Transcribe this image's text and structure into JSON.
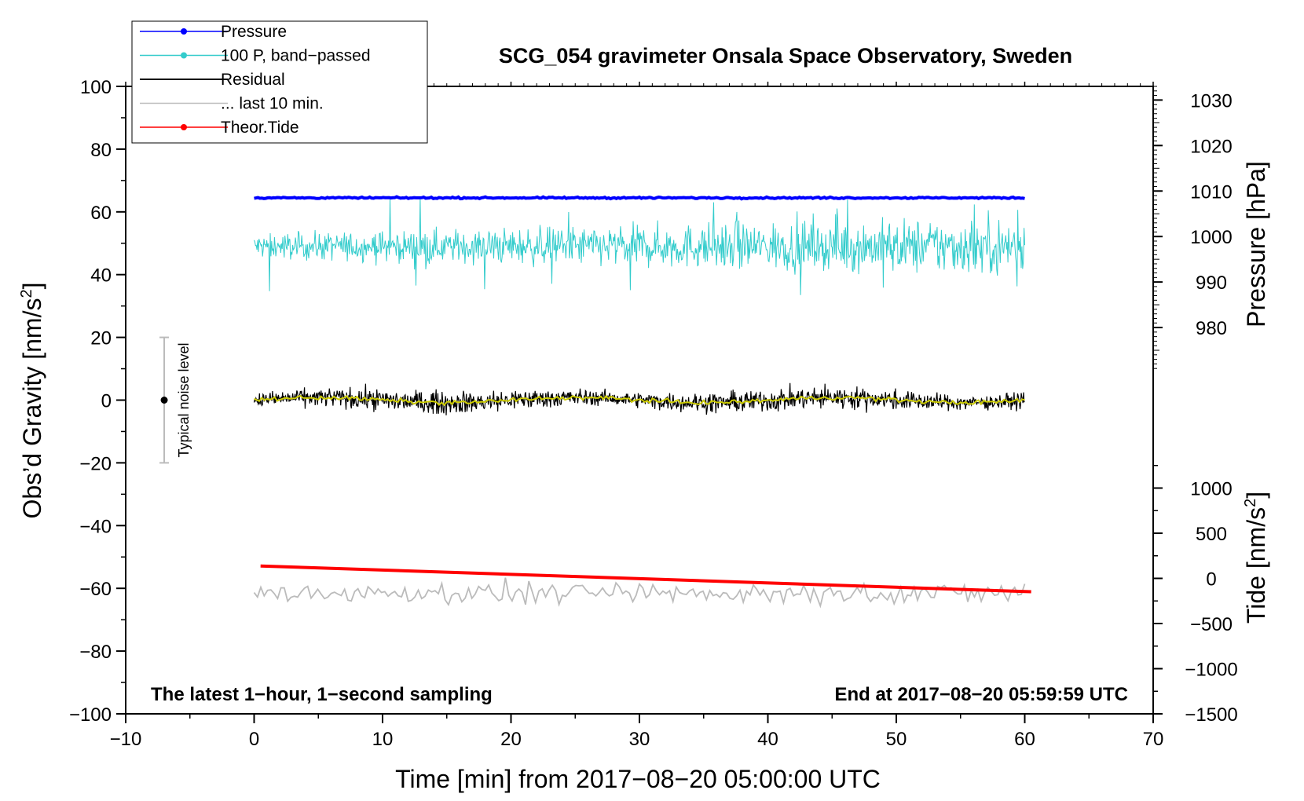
{
  "chart_data": {
    "type": "line",
    "title": "SCG_054 gravimeter Onsala Space Observatory, Sweden",
    "xlabel": "Time [min] from 2017−08−20 05:00:00 UTC",
    "ylabel_left_main": "Obs’d Gravity [nm/s",
    "ylabel_left_sup": "2",
    "ylabel_left_end": "]",
    "ylabel_right_pressure": "Pressure [hPa]",
    "ylabel_right_tide_main": "Tide [nm/s",
    "ylabel_right_tide_sup": "2",
    "ylabel_right_tide_end": "]",
    "xlim": [
      -10,
      70
    ],
    "ylim": [
      -100,
      100
    ],
    "pressure_lim": [
      970,
      1033
    ],
    "tide_lim": [
      -1500,
      1500
    ],
    "x_ticks": [
      -10,
      0,
      10,
      20,
      30,
      40,
      50,
      60,
      70
    ],
    "x_tick_labels": [
      "−10",
      "0",
      "10",
      "20",
      "30",
      "40",
      "50",
      "60",
      "70"
    ],
    "y_ticks": [
      -100,
      -80,
      -60,
      -40,
      -20,
      0,
      20,
      40,
      60,
      80,
      100
    ],
    "y_tick_labels": [
      "−100",
      "−80",
      "−60",
      "−40",
      "−20",
      "0",
      "20",
      "40",
      "60",
      "80",
      "100"
    ],
    "pressure_ticks": [
      980,
      990,
      1000,
      1010,
      1020,
      1030
    ],
    "pressure_tick_labels": [
      "980",
      "990",
      "1000",
      "1010",
      "1020",
      "1030"
    ],
    "tide_ticks": [
      -1500,
      -1000,
      -500,
      0,
      500,
      1000
    ],
    "tide_tick_labels": [
      "−1500",
      "−1000",
      "−500",
      "0",
      "500",
      "1000"
    ],
    "legend": {
      "position": "top-left",
      "entries": [
        {
          "label": "Pressure",
          "color": "#0000ff",
          "marker": true
        },
        {
          "label": "100 P, band−passed",
          "color": "#33cccc",
          "marker": true
        },
        {
          "label": "Residual",
          "color": "#000000",
          "marker": false
        },
        {
          "label": "... last 10 min.",
          "color": "#bbbbbb",
          "marker": false
        },
        {
          "label": "Theor.Tide",
          "color": "#ff0000",
          "marker": true
        }
      ]
    },
    "series": [
      {
        "name": "Pressure",
        "color": "#0000ff",
        "axis": "pressure",
        "x_range": [
          0,
          60
        ],
        "level": 1008.5,
        "noise": 0.2
      },
      {
        "name": "100 P, band−passed",
        "color": "#33cccc",
        "axis": "left",
        "x_range": [
          0,
          60
        ],
        "center": 49,
        "amplitude": 6
      },
      {
        "name": "Residual",
        "color": "#000000",
        "axis": "left",
        "x_range": [
          0,
          60
        ],
        "center": 0,
        "amplitude": 2.5
      },
      {
        "name": "Residual smoothed",
        "color": "#cccc00",
        "axis": "left",
        "x_range": [
          0,
          60
        ],
        "center": 0,
        "amplitude": 0.8
      },
      {
        "name": "... last 10 min.",
        "color": "#bbbbbb",
        "axis": "left",
        "x_range": [
          0,
          60
        ],
        "center": -61.5,
        "amplitude": 2.5
      },
      {
        "name": "Theor.Tide",
        "color": "#ff0000",
        "axis": "tide",
        "x": [
          0.5,
          60.5
        ],
        "y": [
          137,
          -148
        ]
      }
    ],
    "noise_bar": {
      "x": -7,
      "y": 0,
      "low": -20,
      "high": 20,
      "label": "Typical noise level"
    },
    "annotations": {
      "bottom_left": "The latest 1−hour, 1−second sampling",
      "bottom_right": "End at 2017−08−20 05:59:59 UTC"
    }
  }
}
